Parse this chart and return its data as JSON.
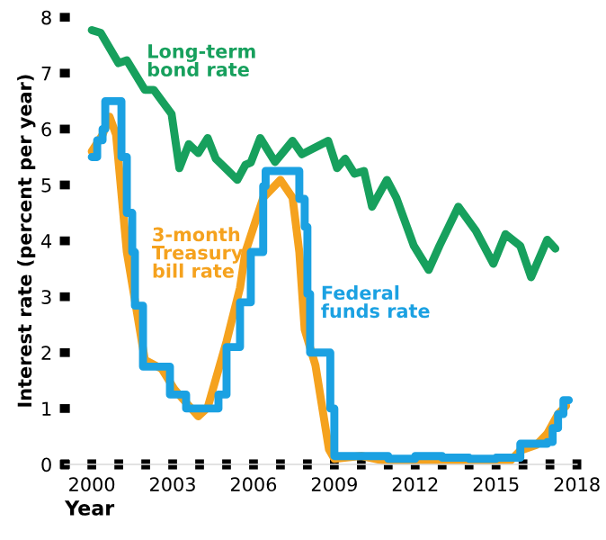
{
  "chart_data": {
    "type": "line",
    "xlabel": "Year",
    "ylabel": "Interest rate (percent per year)",
    "xlim": [
      1999,
      2018
    ],
    "ylim": [
      0,
      8
    ],
    "xticks": [
      {
        "value": 1999,
        "label": null
      },
      2000,
      {
        "value": 2001,
        "label": null
      },
      {
        "value": 2002,
        "label": null
      },
      2003,
      {
        "value": 2004,
        "label": null
      },
      {
        "value": 2005,
        "label": null
      },
      2006,
      {
        "value": 2007,
        "label": null
      },
      {
        "value": 2008,
        "label": null
      },
      2009,
      {
        "value": 2010,
        "label": null
      },
      {
        "value": 2011,
        "label": null
      },
      2012,
      {
        "value": 2013,
        "label": null
      },
      {
        "value": 2014,
        "label": null
      },
      2015,
      {
        "value": 2016,
        "label": null
      },
      {
        "value": 2017,
        "label": null
      },
      2018
    ],
    "yticks": [
      0,
      1,
      2,
      3,
      4,
      5,
      6,
      7,
      8
    ],
    "grid": false,
    "legend": false,
    "marker": "none",
    "line_style": "solid",
    "series": [
      {
        "name": "Long-term\nbond rate",
        "color": "#17a05d",
        "x": [
          2000.0,
          2000.33,
          2000.99,
          2001.3,
          2001.97,
          2002.3,
          2002.96,
          2003.25,
          2003.6,
          2003.95,
          2004.3,
          2004.6,
          2005.4,
          2005.7,
          2005.9,
          2006.25,
          2006.8,
          2007.45,
          2007.8,
          2008.77,
          2009.1,
          2009.4,
          2009.75,
          2010.1,
          2010.4,
          2010.95,
          2011.3,
          2011.95,
          2012.5,
          2012.9,
          2013.6,
          2014.25,
          2014.9,
          2015.35,
          2015.9,
          2016.3,
          2016.9,
          2017.2
        ],
        "values": [
          7.77,
          7.72,
          7.18,
          7.23,
          6.7,
          6.7,
          6.27,
          5.3,
          5.73,
          5.57,
          5.84,
          5.47,
          5.09,
          5.36,
          5.4,
          5.84,
          5.41,
          5.79,
          5.55,
          5.79,
          5.3,
          5.47,
          5.2,
          5.25,
          4.61,
          5.09,
          4.77,
          3.91,
          3.48,
          3.91,
          4.61,
          4.18,
          3.59,
          4.12,
          3.91,
          3.35,
          4.02,
          3.86
        ]
      },
      {
        "name": "3-month\nTreasury\nbill rate",
        "color": "#f5a21e",
        "x": [
          2000.0,
          2000.4,
          2000.66,
          2000.9,
          2001.3,
          2001.97,
          2002.6,
          2003.07,
          2003.95,
          2004.3,
          2005.0,
          2005.5,
          2005.7,
          2006.36,
          2007.0,
          2007.45,
          2007.7,
          2007.9,
          2008.3,
          2008.8,
          2009.0,
          2010.0,
          2011.0,
          2012.0,
          2013.0,
          2014.0,
          2015.0,
          2015.5,
          2015.9,
          2016.5,
          2016.9,
          2017.3,
          2017.6
        ],
        "values": [
          5.6,
          5.9,
          6.22,
          5.9,
          3.8,
          1.87,
          1.71,
          1.34,
          0.86,
          1.02,
          2.2,
          3.16,
          3.8,
          4.77,
          5.09,
          4.77,
          3.8,
          2.41,
          1.77,
          0.27,
          0.1,
          0.15,
          0.05,
          0.08,
          0.05,
          0.03,
          0.02,
          0.05,
          0.25,
          0.35,
          0.55,
          0.9,
          1.05
        ]
      },
      {
        "name": "Federal\nfunds rate",
        "color": "#1ba1e2",
        "type": "step",
        "x": [
          2000.0,
          2000.2,
          2000.4,
          2000.5,
          2001.0,
          2001.1,
          2001.3,
          2001.5,
          2001.6,
          2001.9,
          2002.9,
          2003.5,
          2004.5,
          2004.7,
          2005.0,
          2005.5,
          2005.9,
          2006.36,
          2006.45,
          2007.6,
          2007.7,
          2007.9,
          2008.0,
          2008.1,
          2008.7,
          2008.85,
          2009.0,
          2010.0,
          2011.0,
          2012.0,
          2013.0,
          2014.0,
          2015.0,
          2015.9,
          2016.9,
          2017.1,
          2017.3,
          2017.5,
          2017.7
        ],
        "values": [
          5.5,
          5.8,
          6.0,
          6.5,
          6.5,
          5.5,
          4.5,
          3.8,
          2.84,
          1.75,
          1.25,
          1.0,
          1.0,
          1.25,
          2.1,
          2.9,
          3.8,
          4.98,
          5.25,
          5.25,
          4.75,
          4.25,
          3.05,
          2.0,
          2.0,
          1.0,
          0.15,
          0.15,
          0.1,
          0.15,
          0.12,
          0.1,
          0.12,
          0.37,
          0.4,
          0.65,
          0.9,
          1.15,
          1.15
        ]
      }
    ]
  }
}
